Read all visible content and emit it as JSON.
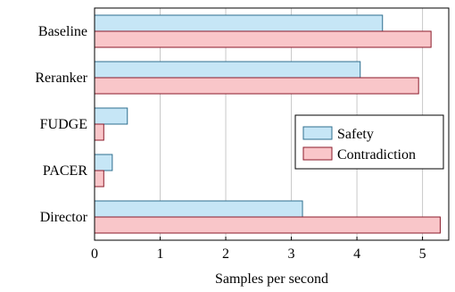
{
  "chart_data": {
    "type": "bar",
    "orientation": "horizontal",
    "title": "",
    "xlabel": "Samples per second",
    "ylabel": "",
    "xlim": [
      0,
      5.4
    ],
    "xticks": [
      0,
      1,
      2,
      3,
      4,
      5
    ],
    "categories": [
      "Baseline",
      "Reranker",
      "FUDGE",
      "PACER",
      "Director"
    ],
    "series": [
      {
        "name": "Safety",
        "values": [
          4.39,
          4.05,
          0.5,
          0.27,
          3.17
        ],
        "fill": "#c6e6f6",
        "stroke": "#2f6f8f"
      },
      {
        "name": "Contradiction",
        "values": [
          5.13,
          4.94,
          0.14,
          0.14,
          5.27
        ],
        "fill": "#f9c6c9",
        "stroke": "#8b1a2a"
      }
    ],
    "grid": true,
    "legend_position": "right"
  }
}
